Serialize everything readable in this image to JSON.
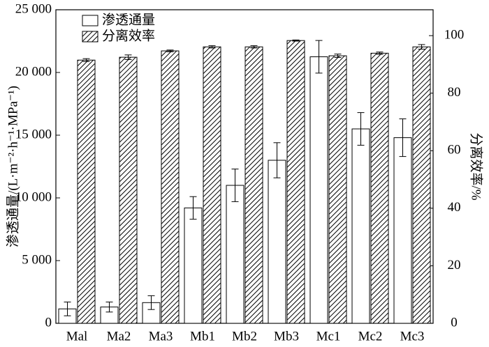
{
  "chart_data": {
    "type": "bar",
    "categories": [
      "Mal",
      "Ma2",
      "Ma3",
      "Mb1",
      "Mb2",
      "Mb3",
      "Mc1",
      "Mc2",
      "Mc3"
    ],
    "series": [
      {
        "name": "渗透通量",
        "color": "#ffffff",
        "values": [
          1150,
          1300,
          1650,
          9200,
          11000,
          13000,
          21250,
          15500,
          14800
        ],
        "errors": [
          550,
          400,
          550,
          900,
          1300,
          1400,
          1300,
          1300,
          1500
        ]
      },
      {
        "name": "分离效率",
        "color": "#000000",
        "hatch": true,
        "axis": "y2",
        "values": [
          91.5,
          92.5,
          94.7,
          96.1,
          96.1,
          98.3,
          93.0,
          93.9,
          96.1
        ],
        "errors": [
          0.5,
          0.8,
          0.3,
          0.4,
          0.4,
          0.2,
          0.6,
          0.4,
          0.8
        ]
      }
    ],
    "ylabel": "渗透通量/(L·m⁻²·h⁻¹·MPa⁻¹)",
    "y2label": "分离效率/%",
    "ylim": [
      0,
      25000
    ],
    "yticks": [
      0,
      {
        "value": 5000,
        "label": "5 000"
      },
      {
        "value": 10000,
        "label": "10 000"
      },
      {
        "value": 15000,
        "label": "15 000"
      },
      {
        "value": 20000,
        "label": "20 000"
      },
      {
        "value": 25000,
        "label": "25 000"
      }
    ],
    "y2lim": [
      0,
      109
    ],
    "y2ticks": [
      0,
      20,
      40,
      60,
      80,
      100
    ],
    "legend": "upper-left"
  }
}
